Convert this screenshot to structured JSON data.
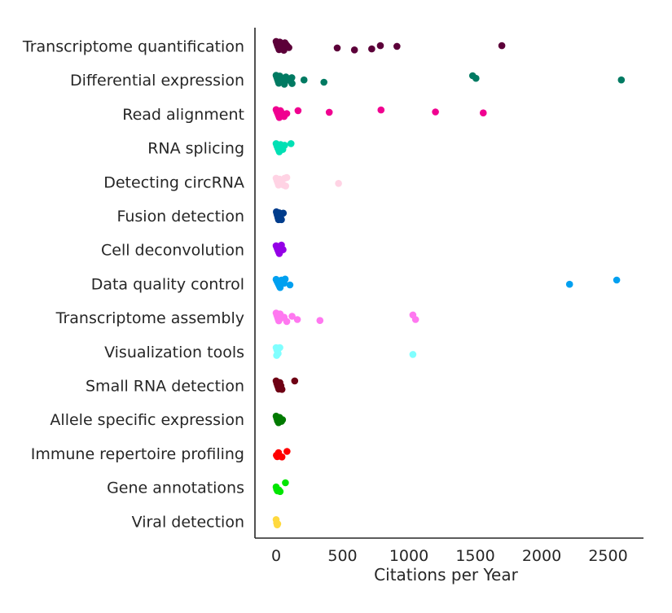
{
  "chart_data": {
    "type": "scatter",
    "subtype": "strip",
    "title": "",
    "xlabel": "Citations per Year",
    "ylabel": "",
    "xlim": [
      -80,
      2750
    ],
    "xticks": [
      0,
      500,
      1000,
      1500,
      2000,
      2500
    ],
    "grid": false,
    "legend": "none",
    "categories": [
      "Transcriptome quantification",
      "Differential expression",
      "Read alignment",
      "RNA splicing",
      "Detecting circRNA",
      "Fusion detection",
      "Cell deconvolution",
      "Data quality control",
      "Transcriptome assembly",
      "Visualization tools",
      "Small RNA detection",
      "Allele specific expression",
      "Immune repertoire profiling",
      "Gene annotations",
      "Viral detection"
    ],
    "series": [
      {
        "color": "#5c0039",
        "points": [
          [
            0,
            -0.28
          ],
          [
            4,
            -0.18
          ],
          [
            8,
            -0.08
          ],
          [
            12,
            0.02
          ],
          [
            18,
            0.12
          ],
          [
            22,
            0.22
          ],
          [
            28,
            -0.24
          ],
          [
            34,
            -0.14
          ],
          [
            40,
            -0.04
          ],
          [
            46,
            0.06
          ],
          [
            52,
            0.16
          ],
          [
            58,
            0.26
          ],
          [
            66,
            -0.2
          ],
          [
            74,
            -0.1
          ],
          [
            84,
            0.0
          ],
          [
            96,
            0.1
          ],
          [
            460,
            0.12
          ],
          [
            590,
            0.24
          ],
          [
            720,
            0.18
          ],
          [
            785,
            -0.02
          ],
          [
            910,
            0.02
          ],
          [
            1700,
            -0.02
          ]
        ]
      },
      {
        "color": "#007a62",
        "points": [
          [
            0,
            -0.28
          ],
          [
            5,
            -0.16
          ],
          [
            10,
            -0.04
          ],
          [
            15,
            0.08
          ],
          [
            20,
            0.2
          ],
          [
            28,
            -0.24
          ],
          [
            36,
            -0.1
          ],
          [
            44,
            0.02
          ],
          [
            52,
            0.14
          ],
          [
            62,
            0.26
          ],
          [
            74,
            -0.18
          ],
          [
            86,
            -0.06
          ],
          [
            104,
            0.04
          ],
          [
            118,
            -0.14
          ],
          [
            120,
            0.22
          ],
          [
            210,
            0.0
          ],
          [
            360,
            0.14
          ],
          [
            1480,
            -0.26
          ],
          [
            1505,
            -0.1
          ],
          [
            2600,
            0.0
          ]
        ]
      },
      {
        "color": "#f00090",
        "points": [
          [
            0,
            -0.26
          ],
          [
            6,
            -0.14
          ],
          [
            12,
            -0.02
          ],
          [
            18,
            0.1
          ],
          [
            24,
            0.22
          ],
          [
            32,
            -0.2
          ],
          [
            40,
            -0.08
          ],
          [
            48,
            0.04
          ],
          [
            60,
            0.16
          ],
          [
            80,
            -0.02
          ],
          [
            165,
            -0.2
          ],
          [
            400,
            -0.1
          ],
          [
            790,
            -0.24
          ],
          [
            1200,
            -0.12
          ],
          [
            1560,
            -0.06
          ]
        ]
      },
      {
        "color": "#00e0b4",
        "points": [
          [
            0,
            -0.26
          ],
          [
            6,
            -0.12
          ],
          [
            12,
            0.0
          ],
          [
            18,
            0.12
          ],
          [
            24,
            0.24
          ],
          [
            34,
            -0.2
          ],
          [
            42,
            -0.04
          ],
          [
            50,
            0.1
          ],
          [
            64,
            -0.16
          ],
          [
            112,
            -0.26
          ]
        ]
      },
      {
        "color": "#ffd3e4",
        "points": [
          [
            0,
            -0.22
          ],
          [
            6,
            -0.08
          ],
          [
            12,
            0.06
          ],
          [
            18,
            0.2
          ],
          [
            26,
            -0.16
          ],
          [
            34,
            -0.02
          ],
          [
            44,
            0.12
          ],
          [
            56,
            0.2
          ],
          [
            64,
            -0.22
          ],
          [
            72,
            0.26
          ],
          [
            80,
            -0.26
          ],
          [
            470,
            0.1
          ]
        ]
      },
      {
        "color": "#003c8c",
        "points": [
          [
            2,
            -0.24
          ],
          [
            6,
            -0.12
          ],
          [
            10,
            0.0
          ],
          [
            14,
            0.12
          ],
          [
            18,
            0.24
          ],
          [
            24,
            -0.18
          ],
          [
            30,
            0.06
          ],
          [
            36,
            0.18
          ],
          [
            54,
            -0.16
          ],
          [
            40,
            0.24
          ]
        ]
      },
      {
        "color": "#9400e6",
        "points": [
          [
            0,
            -0.24
          ],
          [
            6,
            -0.12
          ],
          [
            12,
            0.0
          ],
          [
            18,
            0.12
          ],
          [
            24,
            0.24
          ],
          [
            30,
            -0.18
          ],
          [
            36,
            0.06
          ],
          [
            40,
            -0.28
          ],
          [
            52,
            0.0
          ]
        ]
      },
      {
        "color": "#00a0f0",
        "points": [
          [
            0,
            -0.26
          ],
          [
            6,
            -0.16
          ],
          [
            12,
            -0.06
          ],
          [
            18,
            0.04
          ],
          [
            24,
            0.14
          ],
          [
            30,
            0.24
          ],
          [
            40,
            -0.22
          ],
          [
            50,
            -0.1
          ],
          [
            60,
            -0.02
          ],
          [
            68,
            -0.28
          ],
          [
            104,
            0.08
          ],
          [
            2210,
            0.04
          ],
          [
            2565,
            -0.22
          ]
        ]
      },
      {
        "color": "#ff78f0",
        "points": [
          [
            0,
            -0.28
          ],
          [
            5,
            -0.16
          ],
          [
            10,
            -0.04
          ],
          [
            15,
            0.08
          ],
          [
            20,
            0.2
          ],
          [
            30,
            -0.22
          ],
          [
            40,
            0.02
          ],
          [
            60,
            -0.02
          ],
          [
            80,
            0.24
          ],
          [
            120,
            -0.08
          ],
          [
            160,
            0.12
          ],
          [
            330,
            0.18
          ],
          [
            1030,
            -0.16
          ],
          [
            1050,
            0.12
          ]
        ]
      },
      {
        "color": "#80ffff",
        "points": [
          [
            0,
            -0.24
          ],
          [
            5,
            -0.12
          ],
          [
            10,
            0.0
          ],
          [
            15,
            0.12
          ],
          [
            4,
            0.24
          ],
          [
            20,
            -0.22
          ],
          [
            28,
            -0.24
          ],
          [
            1030,
            0.18
          ]
        ]
      },
      {
        "color": "#6e0014",
        "points": [
          [
            0,
            -0.28
          ],
          [
            5,
            -0.14
          ],
          [
            10,
            -0.02
          ],
          [
            15,
            0.1
          ],
          [
            20,
            0.22
          ],
          [
            28,
            -0.18
          ],
          [
            36,
            0.02
          ],
          [
            44,
            0.24
          ],
          [
            140,
            -0.28
          ]
        ]
      },
      {
        "color": "#007a00",
        "points": [
          [
            0,
            -0.2
          ],
          [
            5,
            -0.06
          ],
          [
            10,
            0.08
          ],
          [
            18,
            0.2
          ],
          [
            26,
            -0.12
          ],
          [
            32,
            0.0
          ],
          [
            40,
            0.12
          ],
          [
            48,
            0.02
          ]
        ]
      },
      {
        "color": "#ff0000",
        "points": [
          [
            2,
            0.12
          ],
          [
            8,
            0.2
          ],
          [
            18,
            -0.04
          ],
          [
            30,
            0.18
          ],
          [
            44,
            0.22
          ],
          [
            82,
            -0.12
          ]
        ]
      },
      {
        "color": "#00e600",
        "points": [
          [
            0,
            -0.02
          ],
          [
            4,
            0.12
          ],
          [
            10,
            0.22
          ],
          [
            20,
            0.16
          ],
          [
            30,
            0.26
          ],
          [
            70,
            -0.28
          ]
        ]
      },
      {
        "color": "#ffd93e",
        "points": [
          [
            0,
            -0.1
          ],
          [
            4,
            0.1
          ],
          [
            8,
            0.22
          ],
          [
            12,
            0.16
          ]
        ]
      }
    ]
  }
}
